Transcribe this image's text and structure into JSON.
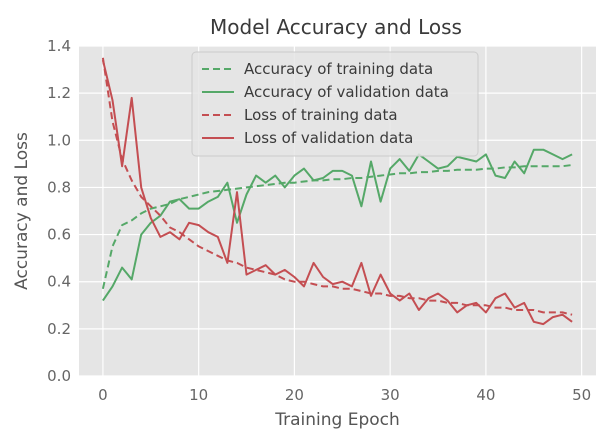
{
  "chart_data": {
    "type": "line",
    "title": "Model Accuracy and Loss",
    "xlabel": "Training Epoch",
    "ylabel": "Accuracy and Loss",
    "xlim": [
      -2.5,
      51.5
    ],
    "ylim": [
      0.0,
      1.4
    ],
    "x_ticks": [
      0,
      10,
      20,
      30,
      40,
      50
    ],
    "y_ticks": [
      0.0,
      0.2,
      0.4,
      0.6,
      0.8,
      1.0,
      1.2,
      1.4
    ],
    "y_tick_labels": [
      "0.0",
      "0.2",
      "0.4",
      "0.6",
      "0.8",
      "1.0",
      "1.2",
      "1.4"
    ],
    "grid": true,
    "legend_position": "top-center",
    "x": [
      0,
      1,
      2,
      3,
      4,
      5,
      6,
      7,
      8,
      9,
      10,
      11,
      12,
      13,
      14,
      15,
      16,
      17,
      18,
      19,
      20,
      21,
      22,
      23,
      24,
      25,
      26,
      27,
      28,
      29,
      30,
      31,
      32,
      33,
      34,
      35,
      36,
      37,
      38,
      39,
      40,
      41,
      42,
      43,
      44,
      45,
      46,
      47,
      48,
      49
    ],
    "series": [
      {
        "name": "Accuracy of training data",
        "color": "#55a868",
        "dash": "dashed",
        "values": [
          0.37,
          0.55,
          0.64,
          0.66,
          0.69,
          0.71,
          0.72,
          0.73,
          0.75,
          0.76,
          0.77,
          0.78,
          0.785,
          0.79,
          0.795,
          0.8,
          0.805,
          0.81,
          0.815,
          0.82,
          0.82,
          0.825,
          0.83,
          0.83,
          0.835,
          0.835,
          0.84,
          0.84,
          0.845,
          0.85,
          0.855,
          0.86,
          0.86,
          0.865,
          0.865,
          0.87,
          0.87,
          0.875,
          0.875,
          0.875,
          0.88,
          0.88,
          0.885,
          0.885,
          0.89,
          0.89,
          0.89,
          0.89,
          0.89,
          0.895
        ]
      },
      {
        "name": "Accuracy of validation data",
        "color": "#55a868",
        "dash": "solid",
        "values": [
          0.32,
          0.38,
          0.46,
          0.41,
          0.6,
          0.65,
          0.68,
          0.74,
          0.75,
          0.71,
          0.71,
          0.74,
          0.76,
          0.82,
          0.65,
          0.77,
          0.85,
          0.82,
          0.85,
          0.8,
          0.85,
          0.88,
          0.83,
          0.84,
          0.87,
          0.87,
          0.85,
          0.72,
          0.91,
          0.74,
          0.88,
          0.92,
          0.87,
          0.94,
          0.91,
          0.88,
          0.89,
          0.93,
          0.92,
          0.91,
          0.94,
          0.85,
          0.84,
          0.91,
          0.86,
          0.96,
          0.96,
          0.94,
          0.92,
          0.94
        ]
      },
      {
        "name": "Loss of training data",
        "color": "#c44e52",
        "dash": "dashed",
        "values": [
          1.35,
          1.08,
          0.92,
          0.83,
          0.76,
          0.72,
          0.68,
          0.63,
          0.61,
          0.58,
          0.55,
          0.53,
          0.51,
          0.49,
          0.48,
          0.46,
          0.45,
          0.44,
          0.43,
          0.41,
          0.4,
          0.4,
          0.39,
          0.38,
          0.38,
          0.37,
          0.37,
          0.36,
          0.35,
          0.35,
          0.34,
          0.34,
          0.33,
          0.33,
          0.32,
          0.32,
          0.31,
          0.31,
          0.3,
          0.3,
          0.3,
          0.29,
          0.29,
          0.28,
          0.28,
          0.28,
          0.27,
          0.27,
          0.27,
          0.26
        ]
      },
      {
        "name": "Loss of validation data",
        "color": "#c44e52",
        "dash": "solid",
        "values": [
          1.34,
          1.17,
          0.89,
          1.18,
          0.8,
          0.67,
          0.59,
          0.61,
          0.58,
          0.65,
          0.64,
          0.61,
          0.59,
          0.48,
          0.78,
          0.43,
          0.45,
          0.47,
          0.43,
          0.45,
          0.42,
          0.38,
          0.48,
          0.42,
          0.39,
          0.4,
          0.38,
          0.48,
          0.34,
          0.43,
          0.35,
          0.32,
          0.35,
          0.28,
          0.33,
          0.35,
          0.32,
          0.27,
          0.3,
          0.31,
          0.27,
          0.33,
          0.35,
          0.29,
          0.31,
          0.23,
          0.22,
          0.25,
          0.26,
          0.23
        ]
      }
    ]
  }
}
